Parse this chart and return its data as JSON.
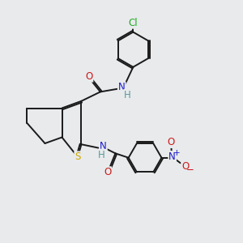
{
  "bg_color": "#e8eaec",
  "bond_color": "#1a1a1a",
  "bond_width": 1.4,
  "dbo": 0.06,
  "atom_colors": {
    "H": "#5a9a9a",
    "N": "#1a1acc",
    "O": "#cc1a1a",
    "S": "#ccaa00",
    "Cl": "#22aa22"
  },
  "fs": 8.5,
  "fig_size": [
    3.0,
    3.0
  ],
  "dpi": 100
}
